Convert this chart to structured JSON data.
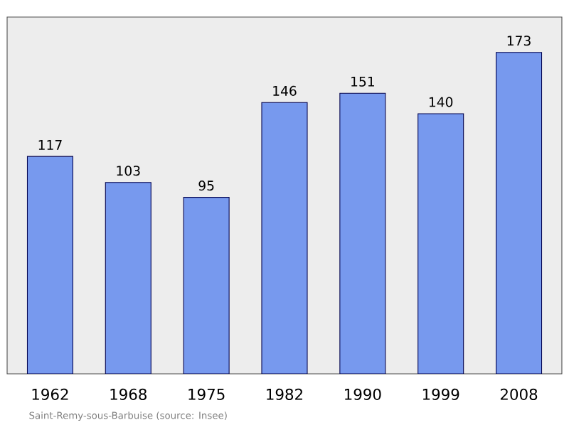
{
  "chart_data": {
    "type": "bar",
    "categories": [
      "1962",
      "1968",
      "1975",
      "1982",
      "1990",
      "1999",
      "2008"
    ],
    "values": [
      117,
      103,
      95,
      146,
      151,
      140,
      173
    ],
    "color": "#7799ee",
    "data_labels": true,
    "annotations": [
      "Saint-Remy-sous-Barbuise    (source: Insee)"
    ]
  }
}
